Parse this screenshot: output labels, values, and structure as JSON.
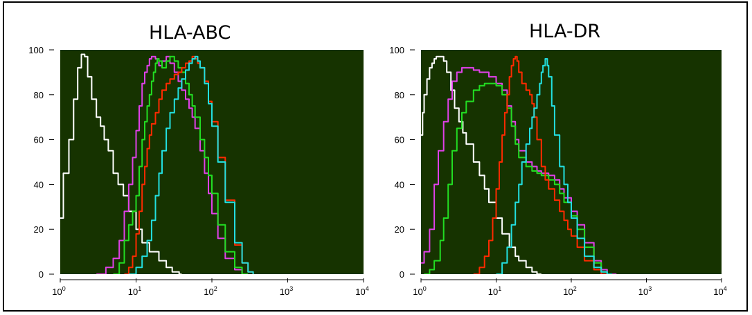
{
  "colors": {
    "plot_background": "#163300",
    "unstained": "#ffffff",
    "magenta": "#e040e8",
    "green": "#22dd22",
    "red": "#ff2a00",
    "cyan": "#22e0e0"
  },
  "chart_data": [
    {
      "type": "area",
      "title": "HLA-ABC",
      "xlabel": "",
      "ylabel": "",
      "xscale": "log",
      "xlim": [
        1,
        10000
      ],
      "ylim": [
        0,
        100
      ],
      "x_ticks": [
        {
          "base": "10",
          "exp": "0"
        },
        {
          "base": "10",
          "exp": "1"
        },
        {
          "base": "10",
          "exp": "2"
        },
        {
          "base": "10",
          "exp": "3"
        },
        {
          "base": "10",
          "exp": "4"
        }
      ],
      "y_ticks": [
        "0",
        "20",
        "40",
        "60",
        "80",
        "100"
      ],
      "grid": false,
      "series": [
        {
          "color": "#ffffff",
          "x": [
            1,
            1.1,
            1.3,
            1.5,
            1.7,
            1.9,
            2.1,
            2.3,
            2.6,
            3.0,
            3.4,
            3.8,
            4.3,
            5.0,
            5.8,
            6.8,
            8,
            10,
            12,
            15,
            20,
            25,
            30,
            37,
            40
          ],
          "y": [
            25,
            45,
            60,
            78,
            92,
            98,
            97,
            88,
            78,
            70,
            66,
            60,
            55,
            45,
            40,
            35,
            28,
            20,
            14,
            10,
            6,
            3,
            1,
            0,
            0
          ]
        },
        {
          "color": "#e040e8",
          "x": [
            3,
            4,
            5,
            6,
            7,
            8,
            9,
            10,
            11,
            12,
            13,
            14,
            15,
            16,
            18,
            20,
            22,
            25,
            28,
            32,
            36,
            40,
            45,
            50,
            55,
            60,
            70,
            80,
            90,
            100,
            120,
            150,
            200,
            250
          ],
          "y": [
            0,
            3,
            7,
            15,
            28,
            40,
            52,
            64,
            75,
            85,
            90,
            93,
            96,
            97,
            96,
            93,
            95,
            97,
            94,
            90,
            86,
            82,
            78,
            74,
            70,
            65,
            55,
            45,
            36,
            27,
            16,
            7,
            2,
            0
          ]
        },
        {
          "color": "#22dd22",
          "x": [
            5,
            6,
            7,
            8,
            9,
            10,
            11,
            12,
            13,
            14,
            15,
            16,
            17,
            18,
            19,
            20,
            22,
            25,
            28,
            32,
            36,
            40,
            45,
            50,
            55,
            60,
            70,
            80,
            90,
            100,
            120,
            150,
            200,
            250,
            300
          ],
          "y": [
            0,
            5,
            15,
            22,
            28,
            35,
            48,
            60,
            68,
            75,
            80,
            86,
            90,
            94,
            96,
            95,
            92,
            95,
            97,
            95,
            92,
            90,
            85,
            80,
            75,
            70,
            60,
            52,
            44,
            36,
            22,
            10,
            3,
            0,
            0
          ]
        },
        {
          "color": "#ff2a00",
          "x": [
            7,
            8,
            9,
            10,
            11,
            12,
            13,
            14,
            15,
            16,
            18,
            20,
            22,
            25,
            28,
            32,
            36,
            40,
            45,
            50,
            55,
            60,
            65,
            70,
            80,
            90,
            100,
            120,
            150,
            200,
            250,
            300,
            350
          ],
          "y": [
            0,
            3,
            8,
            18,
            28,
            40,
            48,
            56,
            62,
            67,
            72,
            78,
            82,
            85,
            87,
            89,
            90,
            92,
            94,
            95,
            97,
            96,
            94,
            92,
            86,
            77,
            68,
            52,
            33,
            13,
            5,
            1,
            0
          ]
        },
        {
          "color": "#22e0e0",
          "x": [
            8,
            10,
            12,
            14,
            16,
            18,
            20,
            22,
            25,
            28,
            32,
            36,
            40,
            45,
            50,
            55,
            60,
            65,
            70,
            80,
            90,
            100,
            120,
            150,
            200,
            250,
            300,
            350
          ],
          "y": [
            0,
            3,
            8,
            15,
            24,
            35,
            45,
            55,
            65,
            72,
            78,
            83,
            87,
            91,
            94,
            96,
            97,
            95,
            92,
            85,
            76,
            66,
            50,
            32,
            14,
            5,
            1,
            0
          ]
        }
      ]
    },
    {
      "type": "area",
      "title": "HLA-DR",
      "xlabel": "",
      "ylabel": "",
      "xscale": "log",
      "xlim": [
        1,
        10000
      ],
      "ylim": [
        0,
        100
      ],
      "x_ticks": [
        {
          "base": "10",
          "exp": "0"
        },
        {
          "base": "10",
          "exp": "1"
        },
        {
          "base": "10",
          "exp": "2"
        },
        {
          "base": "10",
          "exp": "3"
        },
        {
          "base": "10",
          "exp": "4"
        }
      ],
      "y_ticks": [
        "0",
        "20",
        "40",
        "60",
        "80",
        "100"
      ],
      "grid": false,
      "series": [
        {
          "color": "#ffffff",
          "x": [
            1,
            1.05,
            1.1,
            1.2,
            1.3,
            1.4,
            1.5,
            1.6,
            1.8,
            2.0,
            2.2,
            2.5,
            2.8,
            3.2,
            3.6,
            4,
            5,
            6,
            7,
            8,
            10,
            12,
            15,
            18,
            20,
            25,
            30,
            35,
            40
          ],
          "y": [
            62,
            72,
            80,
            87,
            92,
            94,
            96,
            97,
            97,
            95,
            90,
            82,
            74,
            68,
            63,
            58,
            50,
            44,
            38,
            32,
            25,
            18,
            12,
            8,
            6,
            3,
            1,
            0,
            0
          ]
        },
        {
          "color": "#e040e8",
          "x": [
            1,
            1.1,
            1.3,
            1.5,
            1.7,
            2.0,
            2.3,
            2.6,
            3.0,
            3.5,
            4,
            5,
            6,
            7,
            8,
            10,
            12,
            14,
            16,
            18,
            20,
            25,
            30,
            35,
            40,
            50,
            60,
            70,
            80,
            100,
            120,
            150,
            200,
            250,
            300,
            400
          ],
          "y": [
            5,
            10,
            20,
            40,
            55,
            68,
            78,
            86,
            90,
            92,
            92,
            91,
            90,
            90,
            88,
            85,
            82,
            75,
            68,
            60,
            55,
            50,
            48,
            46,
            45,
            44,
            42,
            38,
            34,
            28,
            22,
            14,
            6,
            2,
            0,
            0
          ]
        },
        {
          "color": "#22dd22",
          "x": [
            1.1,
            1.3,
            1.5,
            1.8,
            2.0,
            2.3,
            2.6,
            3.0,
            3.5,
            4,
            5,
            6,
            7,
            8,
            10,
            12,
            14,
            16,
            18,
            20,
            25,
            30,
            35,
            40,
            50,
            60,
            70,
            80,
            100,
            120,
            150,
            200,
            250,
            300
          ],
          "y": [
            0,
            2,
            6,
            15,
            25,
            40,
            55,
            65,
            72,
            77,
            82,
            84,
            85,
            85,
            84,
            80,
            74,
            66,
            58,
            52,
            48,
            46,
            45,
            44,
            42,
            40,
            36,
            32,
            26,
            20,
            12,
            5,
            1,
            0
          ]
        },
        {
          "color": "#ff2a00",
          "x": [
            5,
            6,
            7,
            8,
            9,
            10,
            11,
            12,
            13,
            14,
            15,
            16,
            17,
            18,
            19,
            20,
            22,
            25,
            28,
            30,
            32,
            35,
            40,
            45,
            50,
            60,
            70,
            80,
            90,
            100,
            120,
            150,
            200,
            250,
            300
          ],
          "y": [
            0,
            3,
            8,
            15,
            25,
            38,
            50,
            62,
            72,
            80,
            88,
            93,
            96,
            97,
            95,
            90,
            85,
            82,
            80,
            76,
            70,
            60,
            48,
            42,
            38,
            33,
            28,
            24,
            20,
            17,
            12,
            6,
            2,
            0,
            0
          ]
        },
        {
          "color": "#22e0e0",
          "x": [
            10,
            12,
            14,
            16,
            18,
            20,
            22,
            25,
            28,
            30,
            32,
            35,
            38,
            40,
            42,
            45,
            48,
            50,
            55,
            60,
            70,
            80,
            90,
            100,
            120,
            150,
            200,
            250,
            300,
            350
          ],
          "y": [
            0,
            5,
            12,
            22,
            32,
            40,
            50,
            58,
            65,
            70,
            74,
            80,
            85,
            90,
            93,
            96,
            93,
            88,
            75,
            62,
            48,
            40,
            32,
            25,
            16,
            8,
            3,
            1,
            0,
            0
          ]
        }
      ]
    }
  ]
}
